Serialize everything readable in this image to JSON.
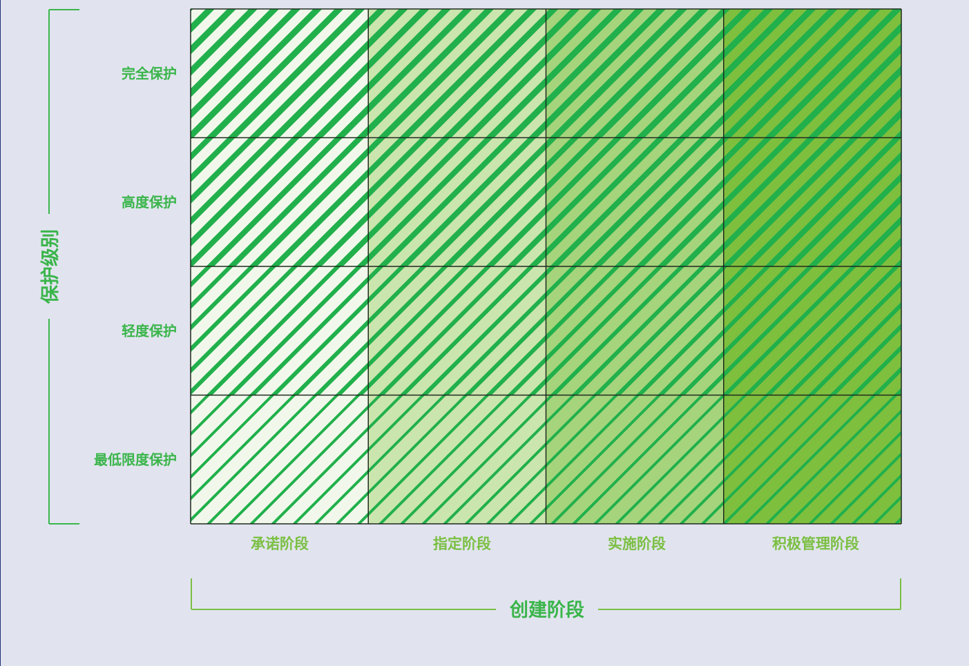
{
  "y_axis": {
    "title": "保护级别",
    "rows": [
      "完全保护",
      "高度保护",
      "轻度保护",
      "最低限度保护"
    ]
  },
  "x_axis": {
    "title": "创建阶段",
    "columns": [
      "承诺阶段",
      "指定阶段",
      "实施阶段",
      "积极管理阶段"
    ]
  },
  "colors": {
    "label_green": "#3ab54a",
    "bracket_green": "#3ab54a",
    "x_bracket_green": "#7bbf43",
    "stripe_green": "#21b04b",
    "background": "#e1e4ef",
    "grid_line": "#1e2a1e",
    "column_base": [
      "#f1f8eb",
      "#cbe5ae",
      "#a5d47c",
      "#7fbf3e"
    ]
  },
  "matrix_note": "Protection level (rows, top = strongest) vs. establishment stage (columns). Cells shaded green; darker/denser hatching = higher level and later stage."
}
